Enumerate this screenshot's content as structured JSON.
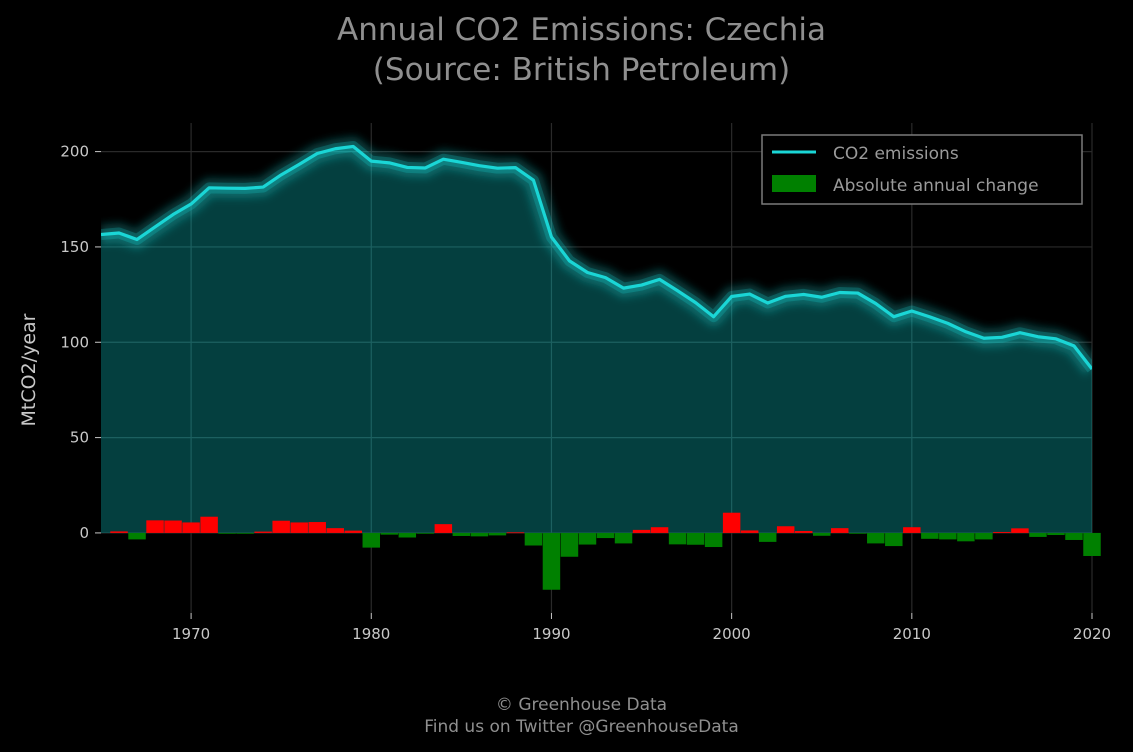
{
  "title_line1": "Annual CO2 Emissions: Czechia",
  "title_line2": "(Source: British Petroleum)",
  "credit_line1": "© Greenhouse Data",
  "credit_line2": "Find us on Twitter @GreenhouseData",
  "colors": {
    "background": "#000000",
    "line": "#1ad6d6",
    "area": "#043f3f",
    "increase": "#ff0000",
    "decrease": "#008000",
    "grid_on_area": "#1c6060",
    "grid_on_bg": "#2a2a2a"
  },
  "chart_data": {
    "type": "line",
    "title": "Annual CO2 Emissions: Czechia (Source: British Petroleum)",
    "xlabel": "",
    "ylabel": "MtCO2/year",
    "xlim": [
      1965,
      2020
    ],
    "ylim": [
      -42,
      215
    ],
    "xticks": [
      1970,
      1980,
      1990,
      2000,
      2010,
      2020
    ],
    "yticks": [
      0,
      50,
      100,
      150,
      200
    ],
    "grid": true,
    "legend": {
      "placement": "top-right",
      "entries": [
        "CO2 emissions",
        "Absolute annual change"
      ]
    },
    "x": [
      1965,
      1966,
      1967,
      1968,
      1969,
      1970,
      1971,
      1972,
      1973,
      1974,
      1975,
      1976,
      1977,
      1978,
      1979,
      1980,
      1981,
      1982,
      1983,
      1984,
      1985,
      1986,
      1987,
      1988,
      1989,
      1990,
      1991,
      1992,
      1993,
      1994,
      1995,
      1996,
      1997,
      1998,
      1999,
      2000,
      2001,
      2002,
      2003,
      2004,
      2005,
      2006,
      2007,
      2008,
      2009,
      2010,
      2011,
      2012,
      2013,
      2014,
      2015,
      2016,
      2017,
      2018,
      2019,
      2020
    ],
    "series": [
      {
        "name": "CO2 emissions",
        "type": "line",
        "values": [
          156.5,
          157.3,
          153.9,
          160.5,
          167.0,
          172.5,
          181.0,
          180.8,
          180.7,
          181.4,
          187.8,
          193.3,
          199.0,
          201.5,
          202.7,
          195.0,
          194.1,
          191.7,
          191.4,
          196.0,
          194.4,
          192.6,
          191.3,
          191.6,
          185.0,
          155.2,
          142.7,
          136.6,
          133.9,
          128.4,
          130.0,
          133.0,
          127.0,
          120.8,
          113.4,
          124.0,
          125.3,
          120.6,
          124.1,
          125.1,
          123.6,
          126.1,
          125.8,
          120.3,
          113.4,
          116.4,
          113.3,
          109.9,
          105.5,
          102.1,
          102.6,
          105.0,
          102.9,
          101.8,
          98.1,
          86.0
        ]
      },
      {
        "name": "Absolute annual change",
        "type": "bar",
        "values": [
          null,
          0.8,
          -3.4,
          6.6,
          6.5,
          5.5,
          8.5,
          -0.2,
          -0.1,
          0.7,
          6.4,
          5.5,
          5.7,
          2.5,
          1.2,
          -7.7,
          -0.9,
          -2.4,
          -0.3,
          4.6,
          -1.6,
          -1.8,
          -1.3,
          0.3,
          -6.6,
          -29.8,
          -12.5,
          -6.1,
          -2.7,
          -5.5,
          1.6,
          3.0,
          -6.0,
          -6.2,
          -7.4,
          10.6,
          1.3,
          -4.7,
          3.5,
          1.0,
          -1.5,
          2.5,
          -0.3,
          -5.5,
          -6.9,
          3.0,
          -3.1,
          -3.4,
          -4.4,
          -3.4,
          0.5,
          2.4,
          -2.1,
          -1.1,
          -3.7,
          -12.1
        ]
      }
    ]
  }
}
